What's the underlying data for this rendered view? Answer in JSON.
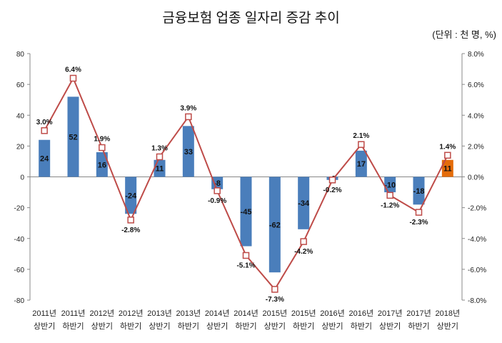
{
  "chart_data": {
    "type": "bar+line",
    "title": "금융보험 업종 일자리 증감 추이",
    "unit_note": "(단위 : 천 명, %)",
    "categories": [
      [
        "2011년",
        "상반기"
      ],
      [
        "2011년",
        "하반기"
      ],
      [
        "2012년",
        "상반기"
      ],
      [
        "2012년",
        "하반기"
      ],
      [
        "2013년",
        "상반기"
      ],
      [
        "2013년",
        "하반기"
      ],
      [
        "2014년",
        "상반기"
      ],
      [
        "2014년",
        "하반기"
      ],
      [
        "2015년",
        "상반기"
      ],
      [
        "2015년",
        "하반기"
      ],
      [
        "2016년",
        "상반기"
      ],
      [
        "2016년",
        "하반기"
      ],
      [
        "2017년",
        "상반기"
      ],
      [
        "2017년",
        "하반기"
      ],
      [
        "2018년",
        "상반기"
      ]
    ],
    "bars": {
      "values": [
        24,
        52,
        16,
        -24,
        11,
        33,
        -8,
        -45,
        -62,
        -34,
        -2,
        17,
        -10,
        -18,
        11
      ],
      "axis": "left",
      "color": "#4a7ebb",
      "highlight_color": "#e46c0a",
      "highlight_index": 14
    },
    "line": {
      "values": [
        3.0,
        6.4,
        1.9,
        -2.8,
        1.3,
        3.9,
        -0.9,
        -5.1,
        -7.3,
        -4.2,
        -0.2,
        2.1,
        -1.2,
        -2.3,
        1.4
      ],
      "labels": [
        "3.0%",
        "6.4%",
        "1.9%",
        "-2.8%",
        "1.3%",
        "3.9%",
        "-0.9%",
        "-5.1%",
        "-7.3%",
        "-4.2%",
        "-0.2%",
        "2.1%",
        "-1.2%",
        "-2.3%",
        "1.4%"
      ],
      "axis": "right",
      "color": "#be4b48",
      "marker": "square"
    },
    "left_axis": {
      "ylim": [
        -80,
        80
      ],
      "ticks": [
        "80",
        "60",
        "40",
        "20",
        "0",
        "-20",
        "-40",
        "-60",
        "-80"
      ]
    },
    "right_axis": {
      "ylim": [
        -8,
        8
      ],
      "ticks": [
        "8.0%",
        "6.0%",
        "4.0%",
        "2.0%",
        "0.0%",
        "-2.0%",
        "-4.0%",
        "-6.0%",
        "-8.0%"
      ]
    },
    "grid": false,
    "legend": "none"
  }
}
